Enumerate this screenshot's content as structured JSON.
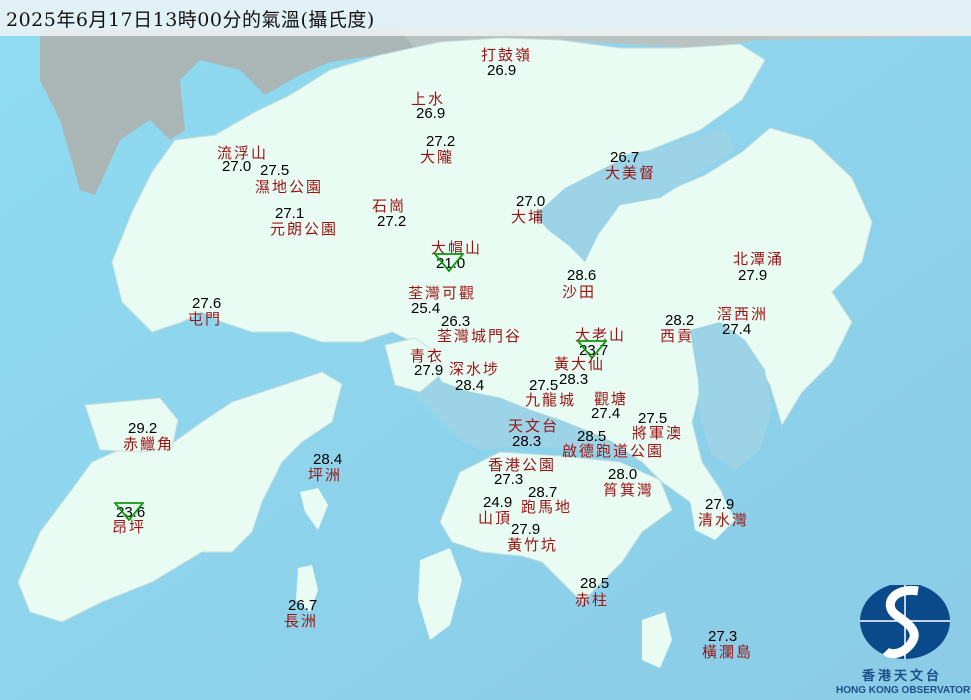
{
  "title": "2025年6月17日13時00分的氣溫(攝氏度)",
  "colors": {
    "sea": "#92d9ef",
    "land": "#e8fcf3",
    "station_name": "#9b1414",
    "temperature": "#000000",
    "hill_marker": "#0a9a0a",
    "logo": "#0b4a8a"
  },
  "stations": [
    {
      "name": "打鼓嶺",
      "temp": "26.9"
    },
    {
      "name": "上水",
      "temp": "26.9"
    },
    {
      "name": "大隴",
      "temp": "27.2"
    },
    {
      "name": "流浮山",
      "temp": "27.0"
    },
    {
      "name": "濕地公園",
      "temp": "27.5"
    },
    {
      "name": "石崗",
      "temp": "27.2"
    },
    {
      "name": "元朗公園",
      "temp": "27.1"
    },
    {
      "name": "大帽山",
      "temp": "21.0",
      "marker": "triangle"
    },
    {
      "name": "荃灣可觀",
      "temp": "25.4"
    },
    {
      "name": "荃灣城門谷",
      "temp": "26.3"
    },
    {
      "name": "屯門",
      "temp": "27.6"
    },
    {
      "name": "大埔",
      "temp": "27.0"
    },
    {
      "name": "大美督",
      "temp": "26.7"
    },
    {
      "name": "沙田",
      "temp": "28.6"
    },
    {
      "name": "北潭涌",
      "temp": "27.9"
    },
    {
      "name": "西貢",
      "temp": "28.2"
    },
    {
      "name": "滘西洲",
      "temp": "27.4"
    },
    {
      "name": "大老山",
      "temp": "23.7",
      "marker": "triangle"
    },
    {
      "name": "青衣",
      "temp": "27.9"
    },
    {
      "name": "深水埗",
      "temp": "28.4"
    },
    {
      "name": "黃大仙",
      "temp": "28.3"
    },
    {
      "name": "九龍城",
      "temp": "27.5"
    },
    {
      "name": "觀塘",
      "temp": "27.4"
    },
    {
      "name": "將軍澳",
      "temp": "27.5"
    },
    {
      "name": "天文台",
      "temp": "28.3"
    },
    {
      "name": "啟德跑道公園",
      "temp": "28.5"
    },
    {
      "name": "香港公園",
      "temp": "27.3"
    },
    {
      "name": "筲箕灣",
      "temp": "28.0"
    },
    {
      "name": "跑馬地",
      "temp": "28.7"
    },
    {
      "name": "山頂",
      "temp": "24.9"
    },
    {
      "name": "黃竹坑",
      "temp": "27.9"
    },
    {
      "name": "清水灣",
      "temp": "27.9"
    },
    {
      "name": "赤柱",
      "temp": "28.5"
    },
    {
      "name": "橫瀾島",
      "temp": "27.3"
    },
    {
      "name": "赤鱲角",
      "temp": "29.2"
    },
    {
      "name": "坪洲",
      "temp": "28.4"
    },
    {
      "name": "昂坪",
      "temp": "23.6",
      "marker": "triangle"
    },
    {
      "name": "長洲",
      "temp": "26.7"
    }
  ],
  "logo": {
    "name_cn": "香港天文台",
    "name_en": "HONG KONG OBSERVATORY"
  }
}
